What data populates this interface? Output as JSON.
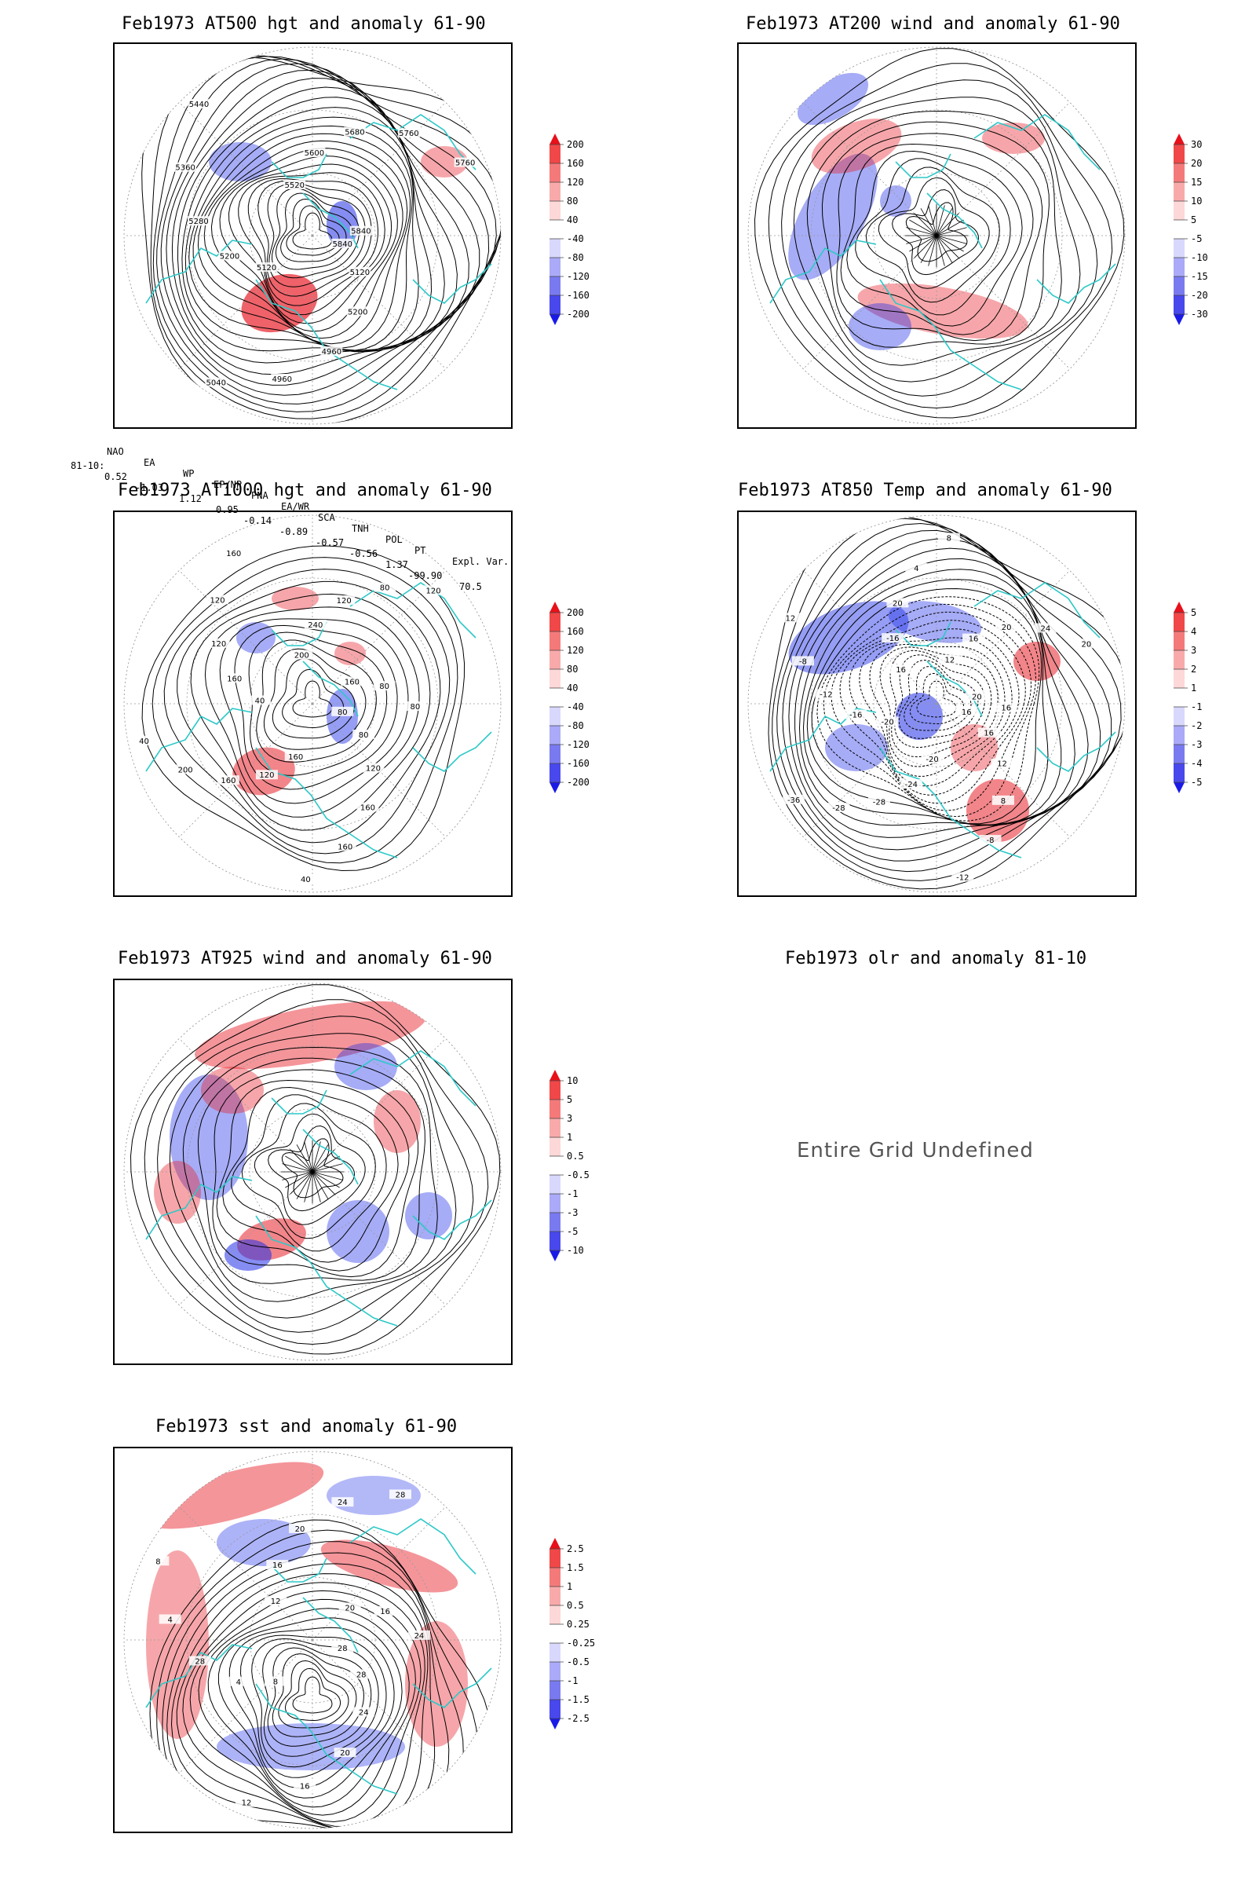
{
  "panels": {
    "p500": {
      "title": "Feb1973 AT500 hgt and anomaly 61-90",
      "contour_labels": [
        "5840",
        "5120",
        "5200",
        "4960",
        "4960",
        "5040",
        "5120",
        "5200",
        "5280",
        "5360",
        "5440",
        "5520",
        "5600",
        "5680",
        "5760",
        "5760",
        "5840"
      ],
      "colorbar": [
        "200",
        "160",
        "120",
        "80",
        "40",
        "-40",
        "-80",
        "-120",
        "-160",
        "-200"
      ]
    },
    "p200": {
      "title": "Feb1973 AT200 wind and anomaly 61-90",
      "colorbar": [
        "30",
        "20",
        "15",
        "10",
        "5",
        "-5",
        "-10",
        "-15",
        "-20",
        "-30"
      ]
    },
    "p1000": {
      "title": "Feb1973 AT1000 hgt and anomaly 61-90",
      "contour_labels": [
        "80",
        "80",
        "120",
        "160",
        "160",
        "40",
        "160",
        "120",
        "160",
        "200",
        "40",
        "40",
        "160",
        "120",
        "120",
        "160",
        "200",
        "240",
        "120",
        "80",
        "120",
        "160",
        "80",
        "80"
      ],
      "colorbar": [
        "200",
        "160",
        "120",
        "80",
        "40",
        "-40",
        "-80",
        "-120",
        "-160",
        "-200"
      ]
    },
    "p850": {
      "title": "Feb1973 AT850 Temp and anomaly 61-90",
      "contour_labels": [
        "16",
        "16",
        "12",
        "8",
        "-8",
        "-12",
        "-20",
        "-24",
        "-28",
        "-28",
        "-36",
        "-20",
        "-16",
        "-12",
        "-8",
        "12",
        "16",
        "-16",
        "20",
        "4",
        "8",
        "12",
        "16",
        "20",
        "24",
        "20",
        "20",
        "16"
      ],
      "colorbar": [
        "5",
        "4",
        "3",
        "2",
        "1",
        "-1",
        "-2",
        "-3",
        "-4",
        "-5"
      ]
    },
    "p925": {
      "title": "Feb1973 AT925 wind and anomaly 61-90",
      "colorbar": [
        "10",
        "5",
        "3",
        "1",
        "0.5",
        "-0.5",
        "-1",
        "-3",
        "-5",
        "-10"
      ]
    },
    "polr": {
      "title": "Feb1973 olr and anomaly 81-10",
      "undefined_text": "Entire Grid Undefined"
    },
    "psst": {
      "title": "Feb1973 sst and anomaly 61-90",
      "contour_labels": [
        "28",
        "28",
        "24",
        "20",
        "16",
        "12",
        "8",
        "4",
        "28",
        "4",
        "8",
        "12",
        "16",
        "20",
        "24",
        "28",
        "20",
        "16",
        "24"
      ],
      "colorbar": [
        "2.5",
        "1.5",
        "1",
        "0.5",
        "0.25",
        "-0.25",
        "-0.5",
        "-1",
        "-1.5",
        "-2.5"
      ]
    }
  },
  "indices": {
    "headers": [
      "NAO",
      "EA",
      "WP",
      "EP/NP",
      "PNA",
      "EA/WR",
      "SCA",
      "TNH",
      "POL",
      "PT",
      "Expl. Var."
    ],
    "row_label": "81-10:",
    "values": [
      "0.52",
      "-1.03",
      "1.12",
      "0.95",
      "-0.14",
      "-0.89",
      "-0.57",
      "-0.56",
      "1.37",
      "-99.90",
      "70.5"
    ]
  },
  "colors": {
    "coast": "#2ec8c8",
    "pos": "#e8202a",
    "neg": "#2030e8",
    "contour": "#000000"
  }
}
